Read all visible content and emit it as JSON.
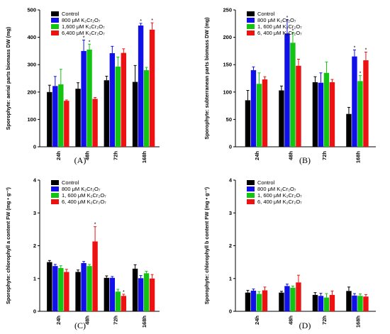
{
  "figure": {
    "panel_labels": [
      "(A)",
      "(B)",
      "(C)",
      "(D)"
    ]
  },
  "legend": {
    "entries": [
      {
        "label": "Control",
        "color": "#000000"
      },
      {
        "label": "800 μM  K₂Cr₂O₇",
        "color": "#1010e8"
      },
      {
        "label": "1,600 μM  K₂Cr₂O₇",
        "color": "#13c413"
      },
      {
        "label": "6,400 μM  K₂Cr₂O₇",
        "color": "#ee1111"
      }
    ],
    "entries_alt": [
      {
        "label": "Control",
        "color": "#000000"
      },
      {
        "label": "800 μM  K₂Cr₂O₇",
        "color": "#1010e8"
      },
      {
        "label": "1, 600 μM  K₂Cr₂O₇",
        "color": "#13c413"
      },
      {
        "label": "6, 400 μM  K₂Cr₂O₇",
        "color": "#ee1111"
      }
    ]
  },
  "chart_data": [
    {
      "type": "bar",
      "panel": "(A)",
      "ylabel": "Sporophyte: aerial parts biomass DW (mg)",
      "categories": [
        "24h",
        "48h",
        "72h",
        "168h"
      ],
      "ylim": [
        0,
        500
      ],
      "yticks": [
        0,
        100,
        200,
        300,
        400,
        500
      ],
      "series": [
        {
          "name": "Control",
          "values": [
            200,
            212,
            243,
            237
          ],
          "errors": [
            25,
            22,
            15,
            60
          ]
        },
        {
          "name": "800 μM  K₂Cr₂O₇",
          "values": [
            222,
            350,
            342,
            443
          ],
          "errors": [
            35,
            40,
            25,
            8
          ]
        },
        {
          "name": "1,600 μM  K₂Cr₂O₇",
          "values": [
            228,
            355,
            293,
            280
          ],
          "errors": [
            55,
            20,
            35,
            10
          ]
        },
        {
          "name": "6,400 μM  K₂Cr₂O₇",
          "values": [
            168,
            175,
            343,
            428
          ],
          "errors": [
            3,
            5,
            15,
            25
          ]
        }
      ],
      "significance": [
        [
          3,
          1
        ],
        [
          1,
          1
        ],
        [
          1,
          2
        ],
        [
          3,
          3
        ]
      ]
    },
    {
      "type": "bar",
      "panel": "(B)",
      "ylabel": "Sporophyte: subterranean parts biomass DW (mg)",
      "categories": [
        "24h",
        "48h",
        "72h",
        "168h"
      ],
      "ylim": [
        0,
        250
      ],
      "yticks": [
        0,
        50,
        100,
        150,
        200,
        250
      ],
      "series": [
        {
          "name": "Control",
          "values": [
            85,
            103,
            118,
            60
          ],
          "errors": [
            18,
            8,
            10,
            12
          ]
        },
        {
          "name": "800 μM  K₂Cr₂O₇",
          "values": [
            140,
            207,
            117,
            165
          ],
          "errors": [
            6,
            25,
            18,
            12
          ]
        },
        {
          "name": "1, 600 μM  K₂Cr₂O₇",
          "values": [
            115,
            190,
            135,
            120
          ],
          "errors": [
            20,
            18,
            20,
            10
          ]
        },
        {
          "name": "6, 400 μM  K₂Cr₂O₇",
          "values": [
            123,
            148,
            118,
            158
          ],
          "errors": [
            5,
            12,
            5,
            15
          ]
        }
      ],
      "significance": [
        [
          1,
          1
        ],
        [
          1,
          2
        ],
        [
          3,
          1
        ],
        [
          3,
          2
        ],
        [
          3,
          3
        ]
      ]
    },
    {
      "type": "bar",
      "panel": "(C)",
      "ylabel": "Sporophyte: chlorophyll a content FW (mg • g⁻¹)",
      "categories": [
        "24h",
        "48h",
        "72h",
        "168h"
      ],
      "ylim": [
        0,
        4
      ],
      "yticks": [
        0,
        1,
        2,
        3,
        4
      ],
      "series": [
        {
          "name": "Control",
          "values": [
            1.5,
            1.2,
            1.02,
            1.3
          ],
          "errors": [
            0.05,
            0.06,
            0.06,
            0.12
          ]
        },
        {
          "name": "800 μM  K₂Cr₂O₇",
          "values": [
            1.38,
            1.47,
            1.02,
            1.01
          ],
          "errors": [
            0.05,
            0.05,
            0.04,
            0.08
          ]
        },
        {
          "name": "1, 600 μM  K₂Cr₂O₇",
          "values": [
            1.32,
            1.38,
            0.6,
            1.16
          ],
          "errors": [
            0.07,
            0.05,
            0.07,
            0.06
          ]
        },
        {
          "name": "6, 400 μM  K₂Cr₂O₇",
          "values": [
            1.2,
            2.13,
            0.47,
            1.0
          ],
          "errors": [
            0.08,
            0.45,
            0.05,
            0.12
          ]
        }
      ],
      "significance": [
        [
          1,
          3
        ],
        [
          2,
          3
        ]
      ]
    },
    {
      "type": "bar",
      "panel": "(D)",
      "ylabel": "Sporophyte: chlorophyll b content FW (mg • g⁻¹)",
      "categories": [
        "24h",
        "48h",
        "72h",
        "168h"
      ],
      "ylim": [
        0,
        4
      ],
      "yticks": [
        0,
        1,
        2,
        3,
        4
      ],
      "series": [
        {
          "name": "Control",
          "values": [
            0.57,
            0.57,
            0.5,
            0.62
          ],
          "errors": [
            0.07,
            0.04,
            0.07,
            0.12
          ]
        },
        {
          "name": "800 μM  K₂Cr₂O₇",
          "values": [
            0.63,
            0.77,
            0.47,
            0.48
          ],
          "errors": [
            0.05,
            0.06,
            0.08,
            0.06
          ]
        },
        {
          "name": "1, 600 μM  K₂Cr₂O₇",
          "values": [
            0.53,
            0.72,
            0.42,
            0.47
          ],
          "errors": [
            0.07,
            0.05,
            0.12,
            0.06
          ]
        },
        {
          "name": "6, 400 μM  K₂Cr₂O₇",
          "values": [
            0.64,
            0.88,
            0.5,
            0.45
          ],
          "errors": [
            0.1,
            0.22,
            0.12,
            0.06
          ]
        }
      ],
      "significance": []
    }
  ]
}
